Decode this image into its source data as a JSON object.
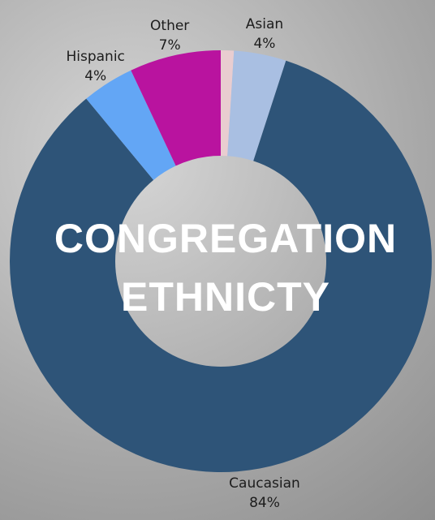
{
  "chart_data": {
    "type": "donut",
    "title": "CONGREGATION ETHNICTY",
    "categories": [
      null,
      "Asian",
      "Caucasian",
      "Hispanic",
      "Other"
    ],
    "values": [
      1,
      4,
      84,
      4,
      7
    ],
    "value_labels": [
      null,
      "4%",
      "84%",
      "4%",
      "7%"
    ],
    "colors": [
      "#e9cdd0",
      "#a9bfe2",
      "#2e5478",
      "#63a6f5",
      "#b9139f"
    ]
  }
}
